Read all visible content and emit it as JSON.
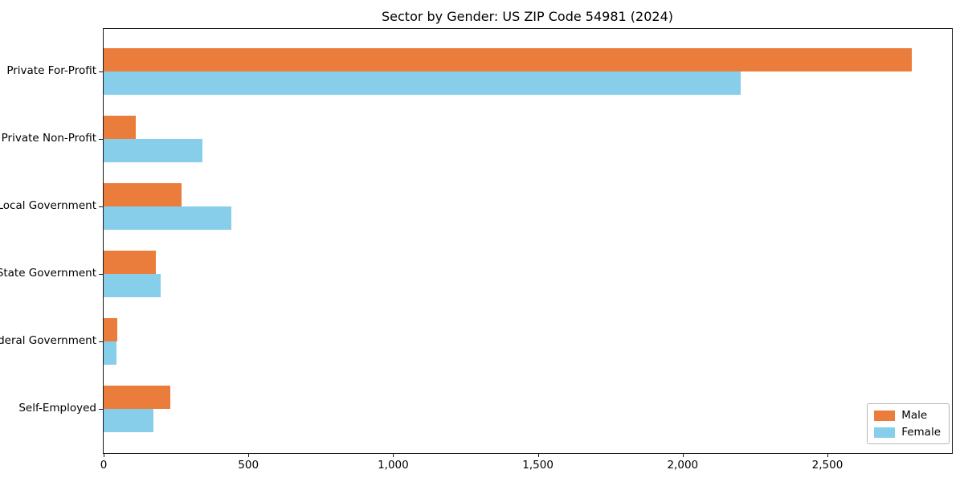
{
  "chart_data": {
    "type": "bar",
    "orientation": "horizontal",
    "title": "Sector by Gender: US ZIP Code 54981 (2024)",
    "categories": [
      "Private For-Profit",
      "Private Non-Profit",
      "Local Government",
      "State Government",
      "Federal Government",
      "Self-Employed"
    ],
    "series": [
      {
        "name": "Male",
        "color": "#EB7D3C",
        "values": [
          2790,
          110,
          270,
          180,
          46,
          230
        ]
      },
      {
        "name": "Female",
        "color": "#87CEEB",
        "values": [
          2200,
          340,
          440,
          196,
          43,
          172
        ]
      }
    ],
    "xlabel": "",
    "ylabel": "",
    "xlim": [
      0,
      2930
    ],
    "xticks": [
      0,
      500,
      1000,
      1500,
      2000,
      2500
    ],
    "xtick_labels": [
      "0",
      "500",
      "1,000",
      "1,500",
      "2,000",
      "2,500"
    ],
    "grid": false,
    "legend_position": "lower right"
  }
}
